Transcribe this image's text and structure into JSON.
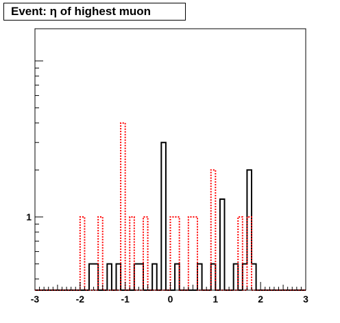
{
  "chart_data": {
    "type": "histogram",
    "title": "Event: η of highest muon",
    "xlim": [
      -3,
      3
    ],
    "y_scale": "log",
    "y_tick_labels": [
      "1"
    ],
    "x_tick_labels": [
      "-3",
      "-2",
      "-1",
      "0",
      "1",
      "2",
      "3"
    ],
    "bin_width": 0.1,
    "series": [
      {
        "style": "solid",
        "color": "#000000",
        "bins": [
          {
            "x": -1.8,
            "y": 0.5
          },
          {
            "x": -1.7,
            "y": 0.5
          },
          {
            "x": -1.4,
            "y": 0.5
          },
          {
            "x": -1.2,
            "y": 0.5
          },
          {
            "x": -0.8,
            "y": 0.5
          },
          {
            "x": -0.7,
            "y": 0.5
          },
          {
            "x": -0.4,
            "y": 0.5
          },
          {
            "x": -0.2,
            "y": 3
          },
          {
            "x": 0.1,
            "y": 0.5
          },
          {
            "x": 0.6,
            "y": 0.5
          },
          {
            "x": 0.9,
            "y": 0.5
          },
          {
            "x": 1.1,
            "y": 1.3
          },
          {
            "x": 1.4,
            "y": 0.5
          },
          {
            "x": 1.6,
            "y": 0.5
          },
          {
            "x": 1.7,
            "y": 2
          },
          {
            "x": 1.8,
            "y": 0.5
          }
        ]
      },
      {
        "style": "dotted",
        "color": "#ff0000",
        "bins": [
          {
            "x": -2.0,
            "y": 1
          },
          {
            "x": -1.6,
            "y": 1
          },
          {
            "x": -1.1,
            "y": 4
          },
          {
            "x": -0.9,
            "y": 1
          },
          {
            "x": -0.6,
            "y": 1
          },
          {
            "x": 0.0,
            "y": 1
          },
          {
            "x": 0.1,
            "y": 1
          },
          {
            "x": 0.4,
            "y": 1
          },
          {
            "x": 0.5,
            "y": 1
          },
          {
            "x": 0.9,
            "y": 2
          },
          {
            "x": 1.5,
            "y": 1
          },
          {
            "x": 1.7,
            "y": 1
          }
        ]
      }
    ]
  }
}
